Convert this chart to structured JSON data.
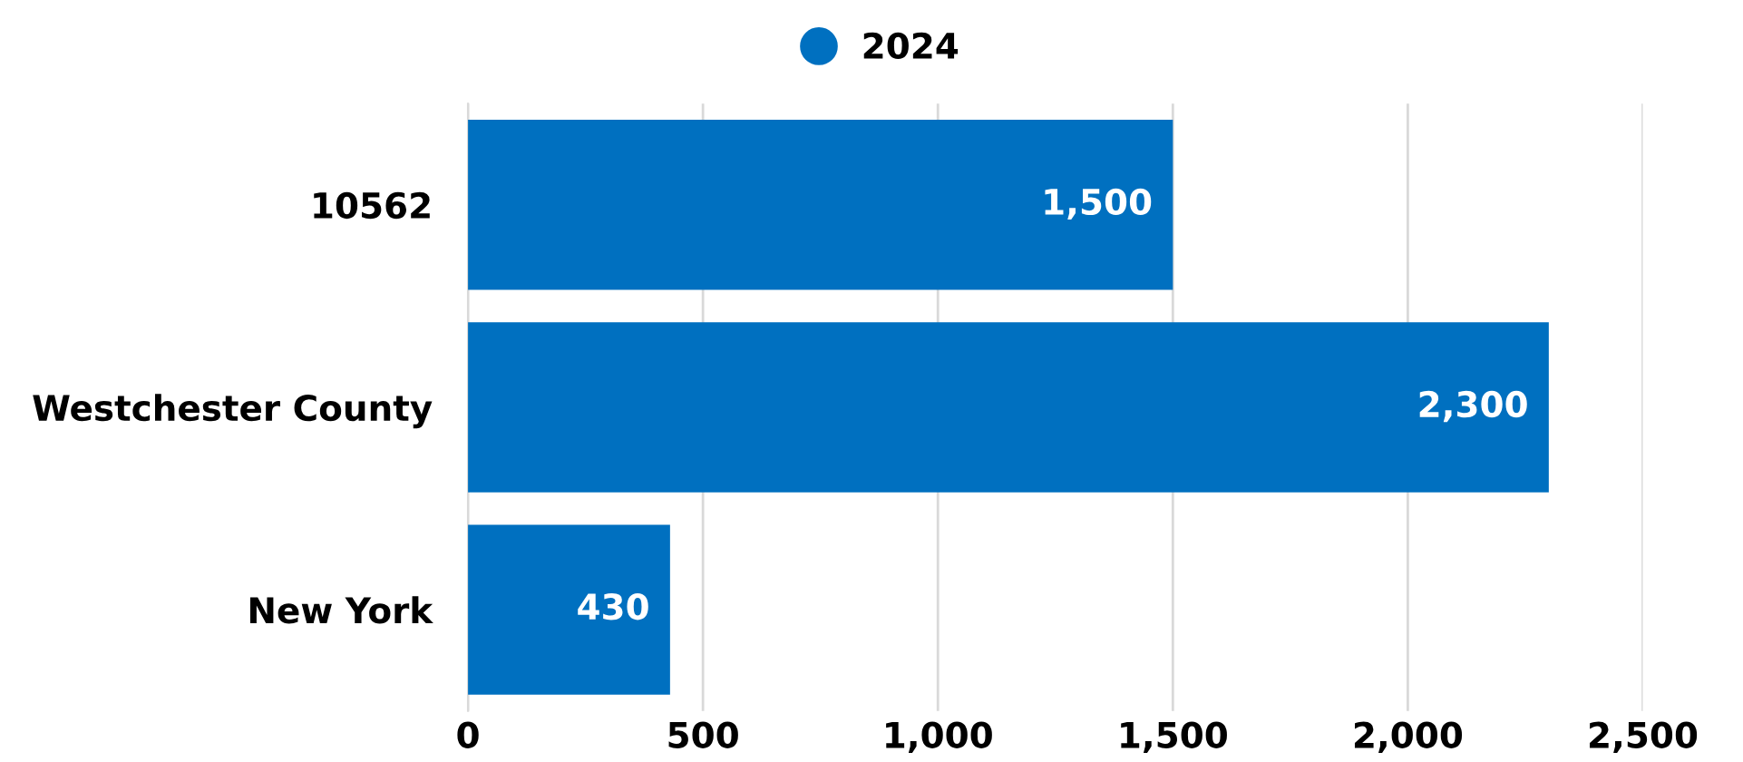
{
  "chart_data": {
    "type": "bar",
    "orientation": "horizontal",
    "categories": [
      "10562",
      "Westchester County",
      "New York"
    ],
    "series": [
      {
        "name": "2024",
        "color": "#0070c0",
        "values": [
          1500,
          2300,
          430
        ],
        "value_labels": [
          "1,500",
          "2,300",
          "430"
        ]
      }
    ],
    "xlim": [
      0,
      2500
    ],
    "xticks": [
      0,
      500,
      {
        "value": 1000,
        "label": "1,000"
      },
      {
        "value": 1500,
        "label": "1,500"
      },
      {
        "value": 2000,
        "label": "2,000"
      },
      {
        "value": 2500,
        "label": "2,500"
      }
    ],
    "grid": "x",
    "legend": "top"
  }
}
